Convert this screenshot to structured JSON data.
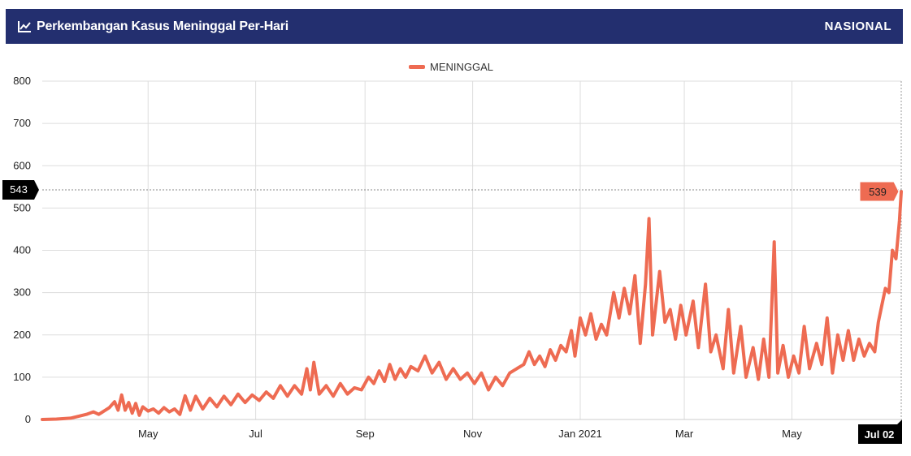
{
  "header": {
    "title": "Perkembangan Kasus Meninggal Per-Hari",
    "scope": "NASIONAL",
    "icon": "line-chart-icon"
  },
  "colors": {
    "header_bg": "#232f6f",
    "series": "#ee6b52",
    "grid": "#dddddd",
    "crosshair_badge": "#000000"
  },
  "chart_data": {
    "type": "line",
    "legend": {
      "label": "MENINGGAL",
      "position": "top-center"
    },
    "y_axis": {
      "min": 0,
      "max": 800,
      "ticks": [
        0,
        100,
        200,
        300,
        400,
        500,
        600,
        700,
        800
      ]
    },
    "x_axis": {
      "min": "2020-03-02",
      "max": "2021-07-02",
      "ticks": [
        {
          "date": "2020-05-01",
          "label": "May"
        },
        {
          "date": "2020-07-01",
          "label": "Jul"
        },
        {
          "date": "2020-09-01",
          "label": "Sep"
        },
        {
          "date": "2020-11-01",
          "label": "Nov"
        },
        {
          "date": "2021-01-01",
          "label": "Jan 2021"
        },
        {
          "date": "2021-03-01",
          "label": "Mar"
        },
        {
          "date": "2021-05-01",
          "label": "May"
        }
      ]
    },
    "grid": true,
    "crosshair": {
      "x_label": "Jul 02",
      "y_label": "543",
      "value_label": "539",
      "value": 539
    },
    "series": [
      {
        "name": "MENINGGAL",
        "points": [
          [
            "2020-03-02",
            0
          ],
          [
            "2020-03-10",
            1
          ],
          [
            "2020-03-18",
            3
          ],
          [
            "2020-03-23",
            8
          ],
          [
            "2020-03-27",
            12
          ],
          [
            "2020-03-31",
            18
          ],
          [
            "2020-04-03",
            12
          ],
          [
            "2020-04-06",
            20
          ],
          [
            "2020-04-09",
            28
          ],
          [
            "2020-04-12",
            42
          ],
          [
            "2020-04-14",
            22
          ],
          [
            "2020-04-16",
            58
          ],
          [
            "2020-04-18",
            22
          ],
          [
            "2020-04-20",
            40
          ],
          [
            "2020-04-22",
            15
          ],
          [
            "2020-04-24",
            38
          ],
          [
            "2020-04-26",
            10
          ],
          [
            "2020-04-28",
            30
          ],
          [
            "2020-05-01",
            20
          ],
          [
            "2020-05-04",
            25
          ],
          [
            "2020-05-07",
            15
          ],
          [
            "2020-05-10",
            28
          ],
          [
            "2020-05-13",
            18
          ],
          [
            "2020-05-16",
            25
          ],
          [
            "2020-05-19",
            12
          ],
          [
            "2020-05-22",
            56
          ],
          [
            "2020-05-25",
            22
          ],
          [
            "2020-05-28",
            55
          ],
          [
            "2020-06-01",
            25
          ],
          [
            "2020-06-05",
            50
          ],
          [
            "2020-06-09",
            30
          ],
          [
            "2020-06-13",
            55
          ],
          [
            "2020-06-17",
            35
          ],
          [
            "2020-06-21",
            60
          ],
          [
            "2020-06-25",
            40
          ],
          [
            "2020-06-29",
            58
          ],
          [
            "2020-07-03",
            45
          ],
          [
            "2020-07-07",
            65
          ],
          [
            "2020-07-11",
            50
          ],
          [
            "2020-07-15",
            80
          ],
          [
            "2020-07-19",
            55
          ],
          [
            "2020-07-23",
            80
          ],
          [
            "2020-07-27",
            60
          ],
          [
            "2020-07-30",
            120
          ],
          [
            "2020-08-01",
            70
          ],
          [
            "2020-08-03",
            135
          ],
          [
            "2020-08-06",
            60
          ],
          [
            "2020-08-10",
            80
          ],
          [
            "2020-08-14",
            55
          ],
          [
            "2020-08-18",
            85
          ],
          [
            "2020-08-22",
            60
          ],
          [
            "2020-08-26",
            75
          ],
          [
            "2020-08-30",
            70
          ],
          [
            "2020-09-03",
            100
          ],
          [
            "2020-09-06",
            85
          ],
          [
            "2020-09-09",
            115
          ],
          [
            "2020-09-12",
            90
          ],
          [
            "2020-09-15",
            130
          ],
          [
            "2020-09-18",
            95
          ],
          [
            "2020-09-21",
            120
          ],
          [
            "2020-09-24",
            100
          ],
          [
            "2020-09-27",
            125
          ],
          [
            "2020-10-01",
            115
          ],
          [
            "2020-10-05",
            150
          ],
          [
            "2020-10-09",
            110
          ],
          [
            "2020-10-13",
            135
          ],
          [
            "2020-10-17",
            95
          ],
          [
            "2020-10-21",
            120
          ],
          [
            "2020-10-25",
            95
          ],
          [
            "2020-10-29",
            110
          ],
          [
            "2020-11-02",
            85
          ],
          [
            "2020-11-06",
            110
          ],
          [
            "2020-11-10",
            70
          ],
          [
            "2020-11-14",
            100
          ],
          [
            "2020-11-18",
            80
          ],
          [
            "2020-11-22",
            110
          ],
          [
            "2020-11-26",
            120
          ],
          [
            "2020-11-30",
            130
          ],
          [
            "2020-12-03",
            160
          ],
          [
            "2020-12-06",
            130
          ],
          [
            "2020-12-09",
            150
          ],
          [
            "2020-12-12",
            125
          ],
          [
            "2020-12-15",
            165
          ],
          [
            "2020-12-18",
            140
          ],
          [
            "2020-12-21",
            175
          ],
          [
            "2020-12-24",
            160
          ],
          [
            "2020-12-27",
            210
          ],
          [
            "2020-12-29",
            150
          ],
          [
            "2021-01-01",
            240
          ],
          [
            "2021-01-04",
            200
          ],
          [
            "2021-01-07",
            250
          ],
          [
            "2021-01-10",
            190
          ],
          [
            "2021-01-13",
            225
          ],
          [
            "2021-01-16",
            200
          ],
          [
            "2021-01-20",
            300
          ],
          [
            "2021-01-23",
            240
          ],
          [
            "2021-01-26",
            310
          ],
          [
            "2021-01-29",
            250
          ],
          [
            "2021-02-01",
            340
          ],
          [
            "2021-02-04",
            180
          ],
          [
            "2021-02-07",
            320
          ],
          [
            "2021-02-09",
            475
          ],
          [
            "2021-02-11",
            200
          ],
          [
            "2021-02-15",
            350
          ],
          [
            "2021-02-18",
            230
          ],
          [
            "2021-02-21",
            260
          ],
          [
            "2021-02-24",
            190
          ],
          [
            "2021-02-27",
            270
          ],
          [
            "2021-03-02",
            200
          ],
          [
            "2021-03-06",
            280
          ],
          [
            "2021-03-09",
            170
          ],
          [
            "2021-03-13",
            320
          ],
          [
            "2021-03-16",
            160
          ],
          [
            "2021-03-19",
            200
          ],
          [
            "2021-03-23",
            120
          ],
          [
            "2021-03-26",
            260
          ],
          [
            "2021-03-29",
            110
          ],
          [
            "2021-04-02",
            220
          ],
          [
            "2021-04-05",
            100
          ],
          [
            "2021-04-09",
            170
          ],
          [
            "2021-04-12",
            95
          ],
          [
            "2021-04-15",
            190
          ],
          [
            "2021-04-18",
            100
          ],
          [
            "2021-04-21",
            420
          ],
          [
            "2021-04-23",
            110
          ],
          [
            "2021-04-26",
            175
          ],
          [
            "2021-04-29",
            100
          ],
          [
            "2021-05-02",
            150
          ],
          [
            "2021-05-05",
            110
          ],
          [
            "2021-05-08",
            220
          ],
          [
            "2021-05-11",
            120
          ],
          [
            "2021-05-15",
            180
          ],
          [
            "2021-05-18",
            130
          ],
          [
            "2021-05-21",
            240
          ],
          [
            "2021-05-24",
            110
          ],
          [
            "2021-05-27",
            200
          ],
          [
            "2021-05-30",
            140
          ],
          [
            "2021-06-02",
            210
          ],
          [
            "2021-06-05",
            140
          ],
          [
            "2021-06-08",
            190
          ],
          [
            "2021-06-11",
            150
          ],
          [
            "2021-06-14",
            180
          ],
          [
            "2021-06-17",
            160
          ],
          [
            "2021-06-19",
            230
          ],
          [
            "2021-06-21",
            270
          ],
          [
            "2021-06-23",
            310
          ],
          [
            "2021-06-25",
            300
          ],
          [
            "2021-06-27",
            400
          ],
          [
            "2021-06-29",
            380
          ],
          [
            "2021-07-01",
            470
          ],
          [
            "2021-07-02",
            539
          ]
        ]
      }
    ]
  }
}
